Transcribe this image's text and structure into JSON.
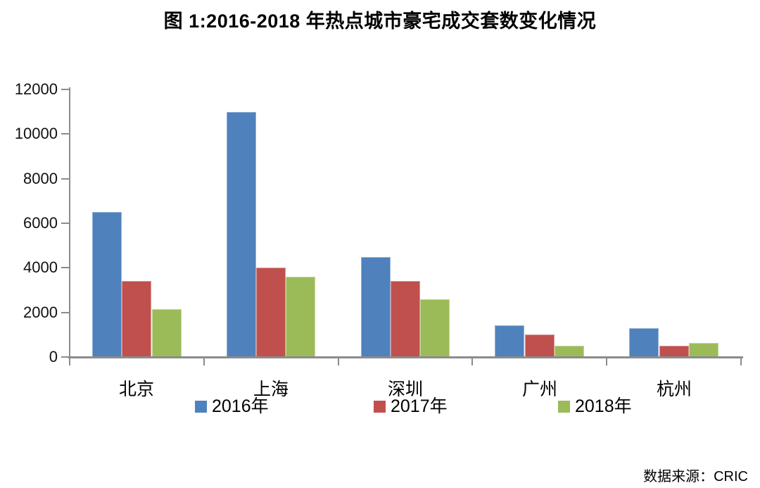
{
  "chart_data": {
    "type": "bar",
    "title": "图 1:2016-2018 年热点城市豪宅成交套数变化情况",
    "categories": [
      "北京",
      "上海",
      "深圳",
      "广州",
      "杭州"
    ],
    "category_slugs": [
      "beijing",
      "shanghai",
      "shenzhen",
      "guangzhou",
      "hangzhou"
    ],
    "series": [
      {
        "name": "2016年",
        "slug": "2016",
        "color": "#4F81BD",
        "border_color": "#95B3D7",
        "values": [
          6500,
          11000,
          4470,
          1430,
          1300
        ]
      },
      {
        "name": "2017年",
        "slug": "2017",
        "color": "#C0504D",
        "border_color": "#D99694",
        "values": [
          3400,
          4000,
          3400,
          1000,
          520
        ]
      },
      {
        "name": "2018年",
        "slug": "2018",
        "color": "#9BBB59",
        "border_color": "#C3D69B",
        "values": [
          2150,
          3600,
          2600,
          500,
          630
        ]
      }
    ],
    "xlabel": "",
    "ylabel": "",
    "ylim": [
      0,
      12000
    ],
    "yticks": [
      0,
      2000,
      4000,
      6000,
      8000,
      10000,
      12000
    ],
    "grid": false,
    "legend_position": "bottom",
    "axis_color": "#8C8C8C",
    "background_color": "#FFFFFF"
  },
  "source_note": "数据来源：CRIC"
}
